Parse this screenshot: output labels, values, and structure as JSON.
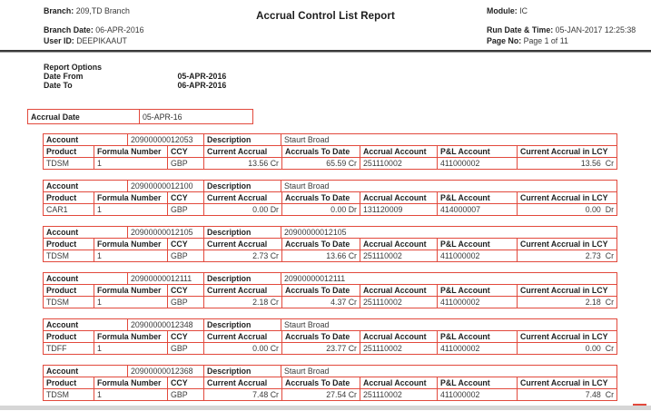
{
  "colors": {
    "border_red": "#e2493c",
    "separator_gray": "#3a3a3a"
  },
  "header": {
    "branch_label": "Branch:",
    "branch_value": "209,TD Branch",
    "title": "Accrual Control List Report",
    "module_label": "Module:",
    "module_value": "IC",
    "branch_date_label": "Branch Date:",
    "branch_date_value": "06-APR-2016",
    "run_label": "Run Date & Time:",
    "run_value": "05-JAN-2017 12:25:38",
    "user_label": "User ID:",
    "user_value": "DEEPIKAAUT",
    "page_label": "Page No:",
    "page_value": "Page 1 of 11"
  },
  "report_options": {
    "title": "Report Options",
    "date_from_label": "Date From",
    "date_from_value": "05-APR-2016",
    "date_to_label": "Date To",
    "date_to_value": "06-APR-2016"
  },
  "accrual_date": {
    "label": "Accrual Date",
    "value": "05-APR-16"
  },
  "table_labels": {
    "account": "Account",
    "description": "Description",
    "product": "Product",
    "formula_number": "Formula Number",
    "ccy": "CCY",
    "current_accrual": "Current Accrual",
    "accruals_to_date": "Accruals To Date",
    "accrual_account": "Accrual Account",
    "pl_account": "P&L Account",
    "current_accrual_lcy": "Current Accrual in LCY"
  },
  "records": [
    {
      "account": "20900000012053",
      "description": "Staurt Broad",
      "product": "TDSM",
      "formula_number": "1",
      "ccy": "GBP",
      "current_accrual": "13.56 Cr",
      "accruals_to_date": "65.59 Cr",
      "accrual_account": "251110002",
      "pl_account": "411000002",
      "current_accrual_lcy": "13.56  Cr"
    },
    {
      "account": "20900000012100",
      "description": "Staurt Broad",
      "product": "CAR1",
      "formula_number": "1",
      "ccy": "GBP",
      "current_accrual": "0.00 Dr",
      "accruals_to_date": "0.00 Dr",
      "accrual_account": "131120009",
      "pl_account": "414000007",
      "current_accrual_lcy": "0.00  Dr"
    },
    {
      "account": "20900000012105",
      "description": "20900000012105",
      "product": "TDSM",
      "formula_number": "1",
      "ccy": "GBP",
      "current_accrual": "2.73 Cr",
      "accruals_to_date": "13.66 Cr",
      "accrual_account": "251110002",
      "pl_account": "411000002",
      "current_accrual_lcy": "2.73  Cr"
    },
    {
      "account": "20900000012111",
      "description": "20900000012111",
      "product": "TDSM",
      "formula_number": "1",
      "ccy": "GBP",
      "current_accrual": "2.18 Cr",
      "accruals_to_date": "4.37 Cr",
      "accrual_account": "251110002",
      "pl_account": "411000002",
      "current_accrual_lcy": "2.18  Cr"
    },
    {
      "account": "20900000012348",
      "description": "Staurt Broad",
      "product": "TDFF",
      "formula_number": "1",
      "ccy": "GBP",
      "current_accrual": "0.00 Cr",
      "accruals_to_date": "23.77 Cr",
      "accrual_account": "251110002",
      "pl_account": "411000002",
      "current_accrual_lcy": "0.00  Cr"
    },
    {
      "account": "20900000012368",
      "description": "Staurt Broad",
      "product": "TDSM",
      "formula_number": "1",
      "ccy": "GBP",
      "current_accrual": "7.48 Cr",
      "accruals_to_date": "27.54 Cr",
      "accrual_account": "251110002",
      "pl_account": "411000002",
      "current_accrual_lcy": "7.48  Cr"
    }
  ]
}
